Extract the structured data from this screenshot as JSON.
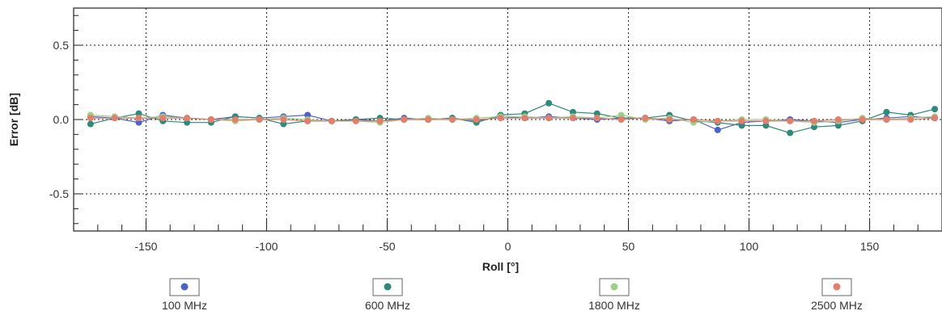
{
  "chart_data": {
    "type": "line",
    "title": "",
    "xlabel": "Roll [°]",
    "ylabel": "Error [dB]",
    "xlim": [
      -180,
      180
    ],
    "ylim": [
      -0.75,
      0.75
    ],
    "xticks": [
      -150,
      -100,
      -50,
      0,
      50,
      100,
      150
    ],
    "yticks": [
      -0.5,
      0.0,
      0.5
    ],
    "xtick_labels": [
      "-150",
      "-100",
      "-50",
      "0",
      "50",
      "100",
      "150"
    ],
    "ytick_labels": [
      "-0.5",
      "0.0",
      "0.5"
    ],
    "grid": true,
    "legend_position": "bottom",
    "series": [
      {
        "name": "100 MHz",
        "color": "#4a63c8",
        "x": [
          -173,
          -163,
          -153,
          -143,
          -133,
          -123,
          -113,
          -103,
          -93,
          -83,
          -73,
          -63,
          -53,
          -43,
          -33,
          -23,
          -13,
          -3,
          7,
          17,
          27,
          37,
          47,
          57,
          67,
          77,
          87,
          97,
          107,
          117,
          127,
          137,
          147,
          157,
          167,
          177
        ],
        "y": [
          0.02,
          0.01,
          -0.02,
          0.03,
          0.01,
          0.0,
          0.02,
          0.01,
          0.02,
          0.03,
          -0.01,
          0.0,
          -0.01,
          0.01,
          0.0,
          0.01,
          -0.01,
          0.02,
          0.01,
          0.02,
          0.01,
          0.0,
          0.01,
          0.01,
          -0.01,
          0.0,
          -0.07,
          -0.02,
          -0.01,
          0.0,
          -0.01,
          -0.02,
          0.0,
          0.01,
          0.02,
          0.01
        ]
      },
      {
        "name": "600 MHz",
        "color": "#2e8a7a",
        "x": [
          -173,
          -163,
          -153,
          -143,
          -133,
          -123,
          -113,
          -103,
          -93,
          -83,
          -73,
          -63,
          -53,
          -43,
          -33,
          -23,
          -13,
          -3,
          7,
          17,
          27,
          37,
          47,
          57,
          67,
          77,
          87,
          97,
          107,
          117,
          127,
          137,
          147,
          157,
          167,
          177
        ],
        "y": [
          -0.03,
          0.01,
          0.04,
          -0.01,
          -0.02,
          -0.02,
          0.02,
          0.01,
          -0.03,
          -0.01,
          -0.01,
          0.0,
          0.01,
          0.0,
          0.0,
          0.01,
          -0.02,
          0.03,
          0.04,
          0.11,
          0.05,
          0.04,
          0.01,
          0.01,
          0.03,
          -0.01,
          -0.02,
          -0.04,
          -0.04,
          -0.09,
          -0.05,
          -0.04,
          -0.01,
          0.05,
          0.03,
          0.07
        ]
      },
      {
        "name": "1800 MHz",
        "color": "#9fd08a",
        "x": [
          -173,
          -163,
          -153,
          -143,
          -133,
          -123,
          -113,
          -103,
          -93,
          -83,
          -73,
          -63,
          -53,
          -43,
          -33,
          -23,
          -13,
          -3,
          7,
          17,
          27,
          37,
          47,
          57,
          67,
          77,
          87,
          97,
          107,
          117,
          127,
          137,
          147,
          157,
          167,
          177
        ],
        "y": [
          0.03,
          0.02,
          0.01,
          0.02,
          0.01,
          0.0,
          -0.01,
          0.0,
          0.01,
          0.0,
          -0.01,
          -0.01,
          -0.02,
          0.0,
          0.01,
          0.0,
          0.01,
          0.02,
          0.02,
          0.01,
          0.02,
          0.01,
          0.03,
          0.0,
          0.01,
          -0.02,
          -0.01,
          0.0,
          0.0,
          -0.01,
          -0.02,
          -0.01,
          0.01,
          0.0,
          0.01,
          0.02
        ]
      },
      {
        "name": "2500 MHz",
        "color": "#e27e6a",
        "x": [
          -173,
          -163,
          -153,
          -143,
          -133,
          -123,
          -113,
          -103,
          -93,
          -83,
          -73,
          -63,
          -53,
          -43,
          -33,
          -23,
          -13,
          -3,
          7,
          17,
          27,
          37,
          47,
          57,
          67,
          77,
          87,
          97,
          107,
          117,
          127,
          137,
          147,
          157,
          167,
          177
        ],
        "y": [
          0.01,
          0.01,
          0.01,
          0.01,
          0.01,
          0.0,
          0.0,
          0.0,
          0.0,
          -0.01,
          -0.01,
          -0.01,
          -0.01,
          0.0,
          0.0,
          0.0,
          0.0,
          0.01,
          0.01,
          0.01,
          0.01,
          0.01,
          0.0,
          0.01,
          0.0,
          0.0,
          -0.01,
          -0.01,
          -0.01,
          -0.01,
          -0.01,
          0.0,
          0.0,
          0.0,
          0.0,
          0.01
        ]
      }
    ]
  }
}
